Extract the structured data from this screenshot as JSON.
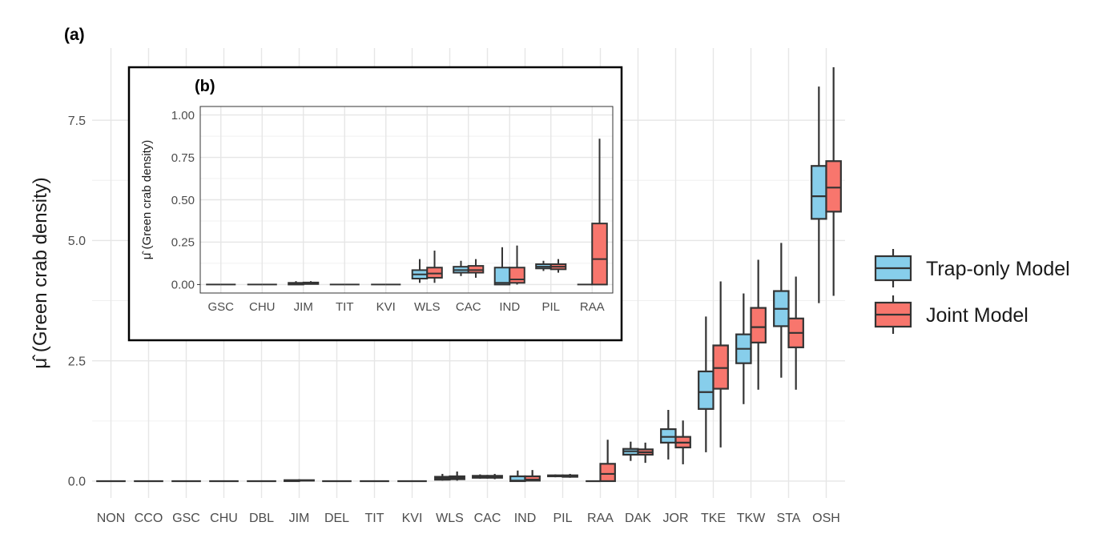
{
  "chart_data": [
    {
      "panel_label": "(a)",
      "type": "boxplot",
      "ylabel": "(Green crab density)",
      "ylabel_symbol": "μ̂",
      "ylim": [
        -0.35,
        9.0
      ],
      "yticks": [
        "0.0",
        "2.5",
        "5.0",
        "7.5"
      ],
      "grid": true,
      "legend_position": "right",
      "categories": [
        "NON",
        "CCO",
        "GSC",
        "CHU",
        "DBL",
        "JIM",
        "DEL",
        "TIT",
        "KVI",
        "WLS",
        "CAC",
        "IND",
        "PIL",
        "RAA",
        "DAK",
        "JOR",
        "TKE",
        "TKW",
        "STA",
        "OSH"
      ],
      "series": [
        {
          "name": "Trap-only Model",
          "color": "#87CEEB",
          "boxes": [
            [
              0,
              0,
              0,
              0,
              0
            ],
            [
              0,
              0,
              0,
              0,
              0
            ],
            [
              0,
              0,
              0,
              0,
              0
            ],
            [
              0,
              0,
              0,
              0,
              0
            ],
            [
              0,
              0,
              0,
              0,
              0
            ],
            [
              0,
              0,
              0.01,
              0.02,
              0.03
            ],
            [
              0,
              0,
              0,
              0,
              0
            ],
            [
              0,
              0,
              0,
              0,
              0
            ],
            [
              0,
              0,
              0,
              0,
              0
            ],
            [
              0.01,
              0.03,
              0.06,
              0.09,
              0.15
            ],
            [
              0.05,
              0.07,
              0.09,
              0.11,
              0.14
            ],
            [
              0,
              0,
              0.01,
              0.1,
              0.22
            ],
            [
              0.08,
              0.1,
              0.11,
              0.12,
              0.14
            ],
            [
              0,
              0,
              0,
              0,
              0
            ],
            [
              0.42,
              0.55,
              0.62,
              0.67,
              0.82
            ],
            [
              0.45,
              0.8,
              0.92,
              1.08,
              1.48
            ],
            [
              0.6,
              1.5,
              1.85,
              2.28,
              3.42
            ],
            [
              1.6,
              2.45,
              2.75,
              3.05,
              3.9
            ],
            [
              2.15,
              3.22,
              3.58,
              3.95,
              4.95
            ],
            [
              3.7,
              5.45,
              5.92,
              6.55,
              8.2
            ]
          ]
        },
        {
          "name": "Joint Model",
          "color": "#F8766D",
          "boxes": [
            [
              0,
              0,
              0,
              0,
              0
            ],
            [
              0,
              0,
              0,
              0,
              0
            ],
            [
              0,
              0,
              0,
              0,
              0
            ],
            [
              0,
              0,
              0,
              0,
              0
            ],
            [
              0,
              0,
              0,
              0,
              0
            ],
            [
              0,
              0.01,
              0.01,
              0.02,
              0.03
            ],
            [
              0,
              0,
              0,
              0,
              0
            ],
            [
              0,
              0,
              0,
              0,
              0
            ],
            [
              0,
              0,
              0,
              0,
              0
            ],
            [
              0.01,
              0.04,
              0.07,
              0.1,
              0.2
            ],
            [
              0.04,
              0.07,
              0.09,
              0.11,
              0.15
            ],
            [
              0,
              0.01,
              0.03,
              0.1,
              0.23
            ],
            [
              0.07,
              0.09,
              0.11,
              0.12,
              0.15
            ],
            [
              0,
              0,
              0.15,
              0.36,
              0.86
            ],
            [
              0.38,
              0.55,
              0.6,
              0.66,
              0.8
            ],
            [
              0.35,
              0.7,
              0.8,
              0.92,
              1.26
            ],
            [
              0.7,
              1.92,
              2.35,
              2.82,
              4.15
            ],
            [
              1.9,
              2.88,
              3.2,
              3.6,
              4.6
            ],
            [
              1.9,
              2.78,
              3.08,
              3.38,
              4.25
            ],
            [
              3.85,
              5.6,
              6.1,
              6.65,
              8.6
            ]
          ]
        }
      ]
    },
    {
      "panel_label": "(b)",
      "type": "boxplot",
      "ylabel": "(Green crab density)",
      "ylabel_symbol": "μ̂",
      "ylim": [
        -0.05,
        1.05
      ],
      "yticks": [
        "0.00",
        "0.25",
        "0.50",
        "0.75",
        "1.00"
      ],
      "grid": true,
      "categories": [
        "GSC",
        "CHU",
        "JIM",
        "TIT",
        "KVI",
        "WLS",
        "CAC",
        "IND",
        "PIL",
        "RAA"
      ],
      "series": [
        {
          "name": "Trap-only Model",
          "color": "#87CEEB",
          "boxes": [
            [
              0,
              0,
              0,
              0,
              0
            ],
            [
              0,
              0,
              0,
              0,
              0
            ],
            [
              0,
              0,
              0.005,
              0.01,
              0.02
            ],
            [
              0,
              0,
              0,
              0,
              0
            ],
            [
              0,
              0,
              0,
              0,
              0
            ],
            [
              0.01,
              0.035,
              0.06,
              0.085,
              0.15
            ],
            [
              0.05,
              0.07,
              0.085,
              0.105,
              0.14
            ],
            [
              0,
              0,
              0.01,
              0.1,
              0.22
            ],
            [
              0.08,
              0.095,
              0.105,
              0.12,
              0.14
            ],
            [
              0,
              0,
              0,
              0,
              0
            ]
          ]
        },
        {
          "name": "Joint Model",
          "color": "#F8766D",
          "boxes": [
            [
              0,
              0,
              0,
              0,
              0
            ],
            [
              0,
              0,
              0,
              0,
              0
            ],
            [
              0,
              0.003,
              0.008,
              0.012,
              0.02
            ],
            [
              0,
              0,
              0,
              0,
              0
            ],
            [
              0,
              0,
              0,
              0,
              0
            ],
            [
              0.01,
              0.04,
              0.065,
              0.1,
              0.2
            ],
            [
              0.04,
              0.07,
              0.085,
              0.11,
              0.15
            ],
            [
              0,
              0.01,
              0.03,
              0.1,
              0.23
            ],
            [
              0.07,
              0.09,
              0.105,
              0.12,
              0.15
            ],
            [
              0,
              0,
              0.15,
              0.36,
              0.86
            ]
          ]
        }
      ]
    }
  ]
}
